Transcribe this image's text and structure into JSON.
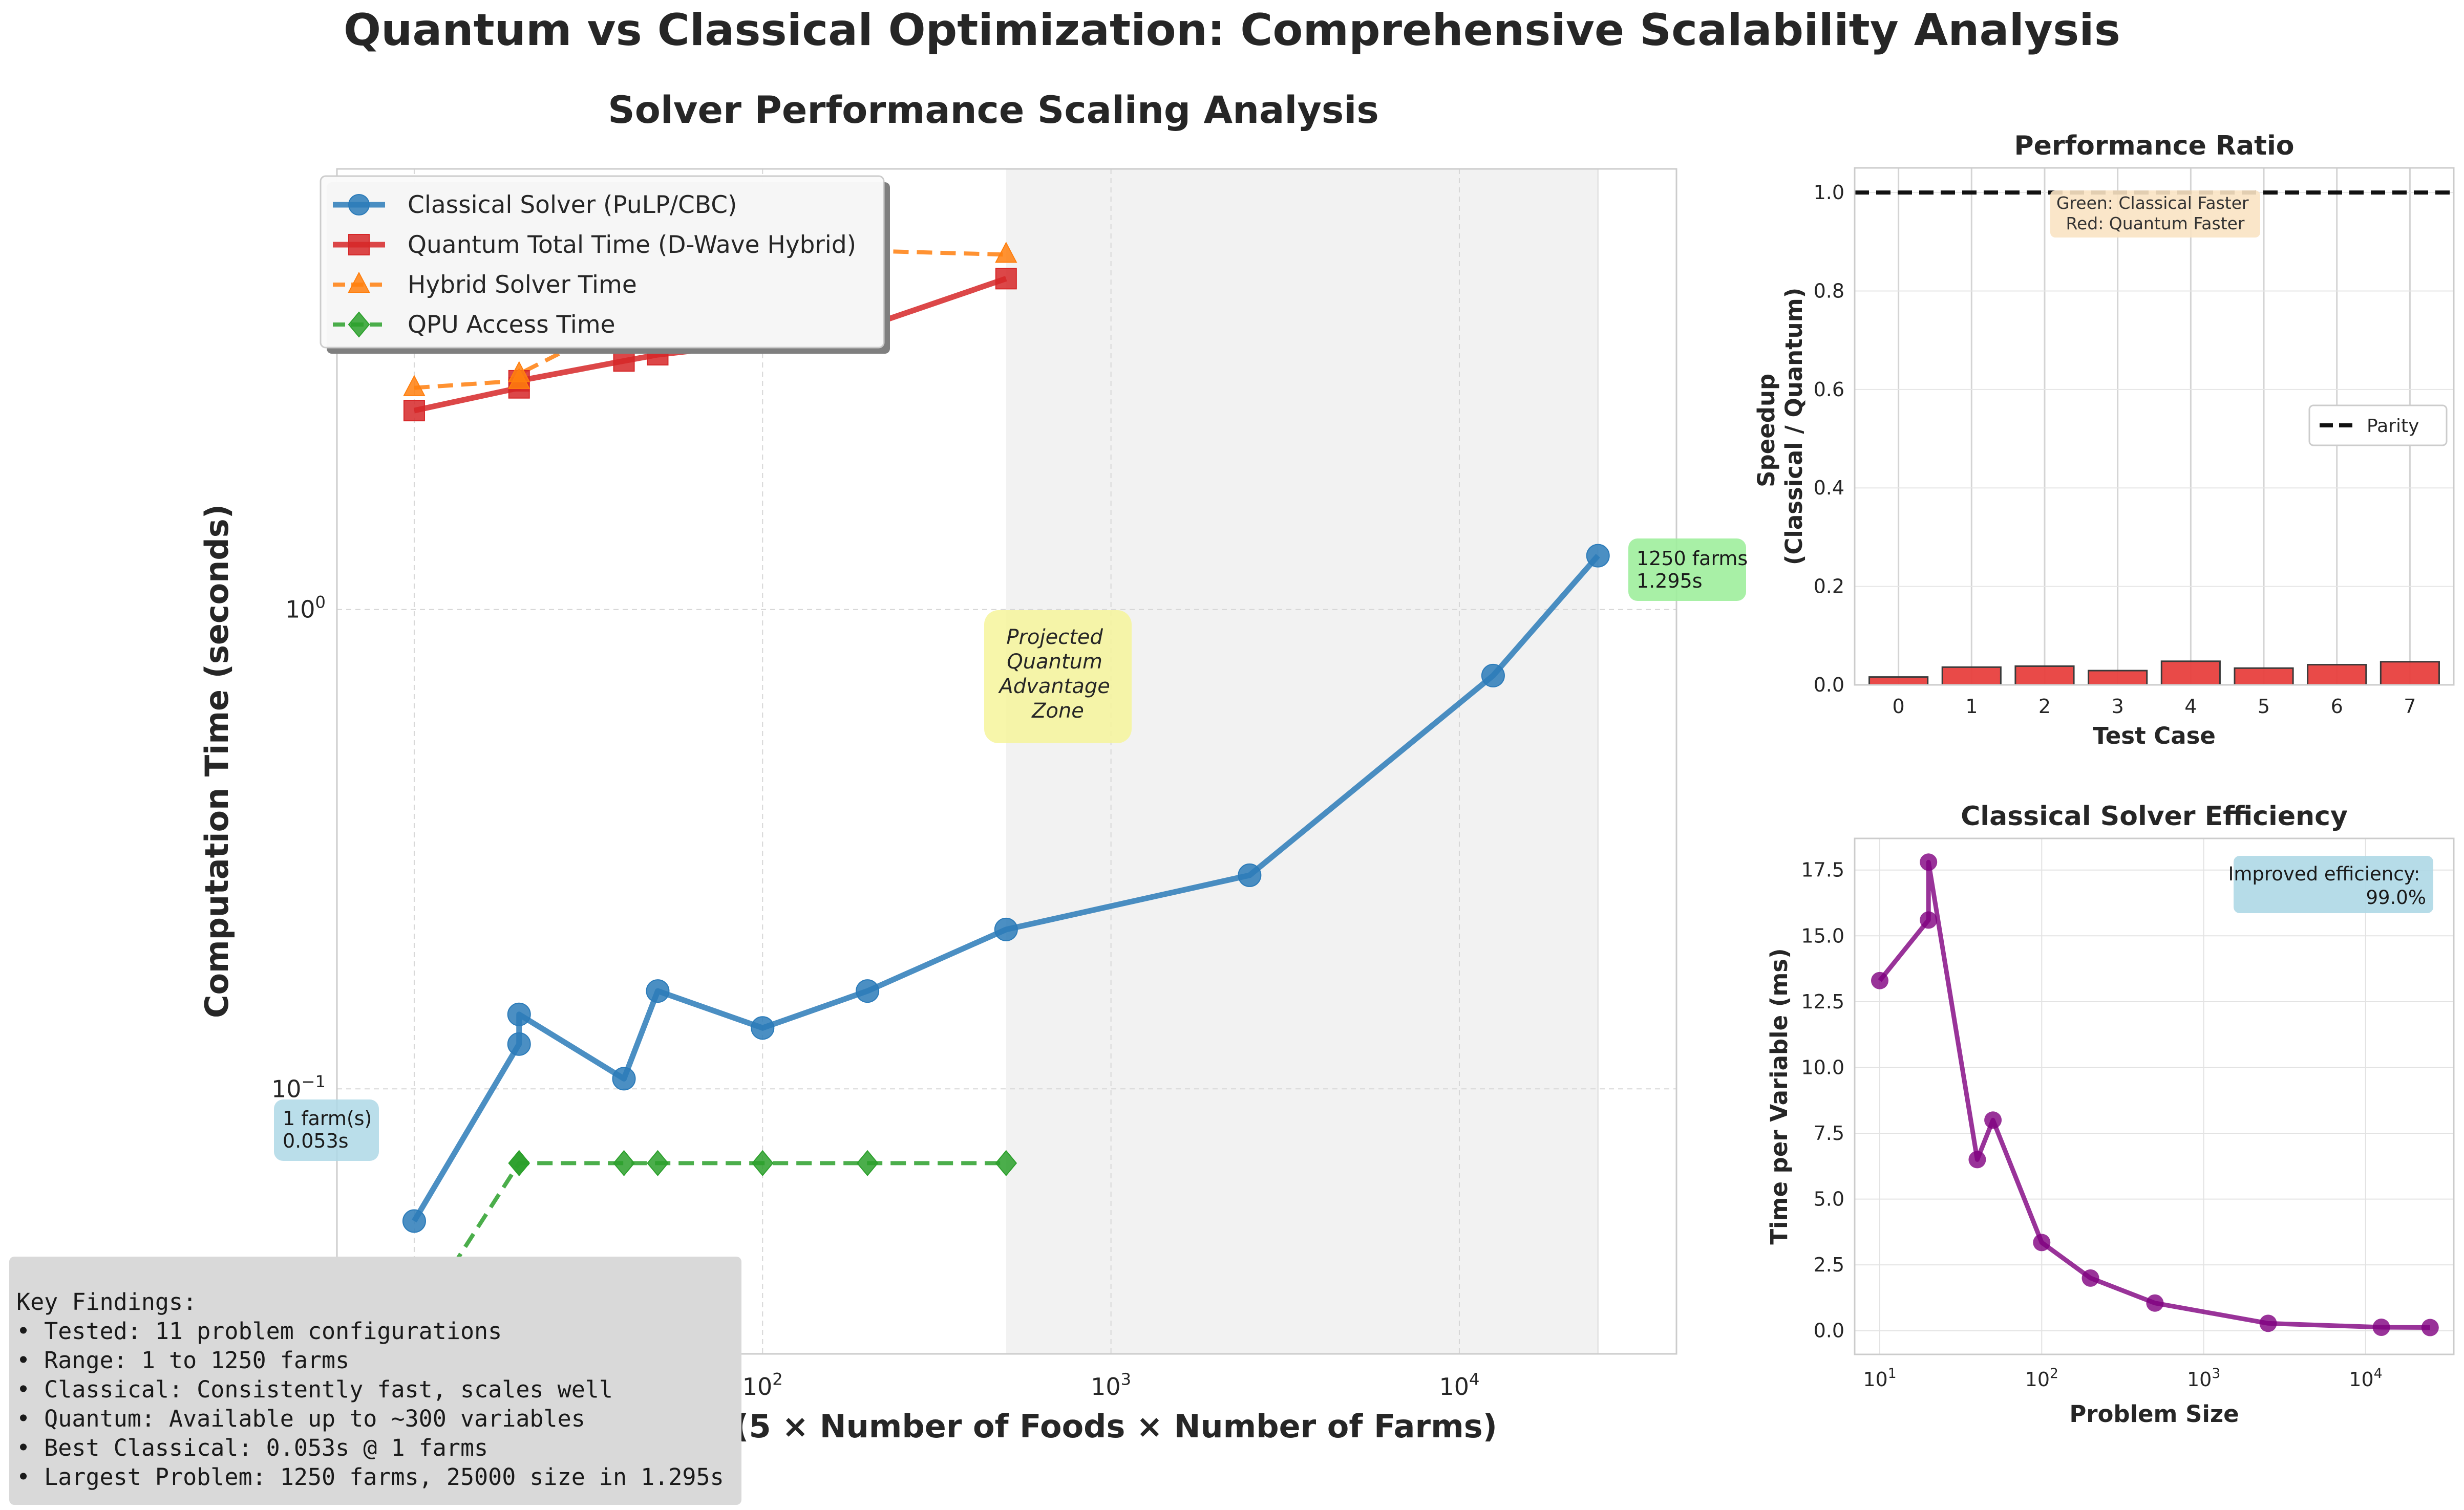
{
  "suptitle": "Quantum vs Classical Optimization: Comprehensive Scalability Analysis",
  "colors": {
    "classical": "#2b7bb9",
    "quantum": "#d62728",
    "hybrid": "#ff7f0e",
    "qpu": "#2ca02c",
    "efficiency": "#800080",
    "ratio_bar": "#e8403e",
    "zone": "#f2f2f2",
    "zone_label_bg": "#f6f59b",
    "first_label_bg": "#aed8e6",
    "last_label_bg": "#9fee9c",
    "efficiency_label_bg": "#aed8e6",
    "ratio_label_bg": "#f9e3c3"
  },
  "chart_data": [
    {
      "type": "line",
      "title": "Solver Performance Scaling Analysis",
      "xlabel": "Problem Size (5 × Number of Foods × Number of Farms)",
      "ylabel": "Computation Time (seconds)",
      "xscale": "log",
      "yscale": "log",
      "xlim": [
        6,
        42000
      ],
      "ylim": [
        0.028,
        8.3
      ],
      "x_ticks": [
        {
          "value": 100,
          "base": "10",
          "exp": "2"
        },
        {
          "value": 1000,
          "base": "10",
          "exp": "3"
        },
        {
          "value": 10000,
          "base": "10",
          "exp": "4"
        }
      ],
      "y_ticks": [
        {
          "value": 0.1,
          "base": "10",
          "exp": "−1"
        },
        {
          "value": 1,
          "base": "10",
          "exp": "0"
        }
      ],
      "grid": true,
      "legend_position": "upper left",
      "series": [
        {
          "name": "Classical Solver (PuLP/CBC)",
          "color_key": "classical",
          "style": "solid",
          "marker": "circle",
          "x": [
            10,
            20,
            20,
            40,
            50,
            100,
            200,
            500,
            2500,
            12500,
            25000
          ],
          "y": [
            0.053,
            0.124,
            0.143,
            0.105,
            0.16,
            0.134,
            0.16,
            0.215,
            0.279,
            0.728,
            1.295
          ]
        },
        {
          "name": "Quantum Total Time (D-Wave Hybrid)",
          "color_key": "quantum",
          "style": "solid",
          "marker": "square",
          "x": [
            10,
            20,
            20,
            40,
            50,
            100,
            200,
            500
          ],
          "y": [
            2.6,
            2.9,
            3.0,
            3.3,
            3.4,
            3.6,
            3.9,
            4.9
          ]
        },
        {
          "name": "Hybrid Solver Time",
          "color_key": "hybrid",
          "style": "dashed",
          "marker": "triangle",
          "x": [
            10,
            20,
            20,
            40,
            50,
            100,
            200,
            500
          ],
          "y": [
            2.9,
            3.0,
            3.1,
            4.0,
            3.9,
            4.1,
            5.6,
            5.5
          ]
        },
        {
          "name": "QPU Access Time",
          "color_key": "qpu",
          "style": "dashed",
          "marker": "diamond",
          "x": [
            10,
            20,
            20,
            40,
            50,
            100,
            200,
            500
          ],
          "y": [
            0.032,
            0.07,
            0.07,
            0.07,
            0.07,
            0.07,
            0.07,
            0.07
          ]
        }
      ],
      "shaded_region": {
        "x": [
          500,
          25000
        ]
      },
      "zone_label": [
        "Projected",
        "Quantum",
        "Advantage",
        "Zone"
      ],
      "annotations": [
        {
          "lines": [
            "1 farm(s)",
            "0.053s"
          ],
          "x": 10,
          "y": 0.053
        },
        {
          "lines": [
            "1250 farms",
            "1.295s"
          ],
          "x": 25000,
          "y": 1.295
        }
      ]
    },
    {
      "type": "bar",
      "title": "Performance Ratio",
      "xlabel": "Test Case",
      "ylabel": [
        "Speedup",
        "(Classical / Quantum)"
      ],
      "categories": [
        "0",
        "1",
        "2",
        "3",
        "4",
        "5",
        "6",
        "7"
      ],
      "values": [
        0.016,
        0.036,
        0.038,
        0.029,
        0.048,
        0.034,
        0.041,
        0.047
      ],
      "ylim": [
        0,
        1.05
      ],
      "y_ticks": [
        "0.0",
        "0.2",
        "0.4",
        "0.6",
        "0.8",
        "1.0"
      ],
      "reference_line": {
        "y": 1.0,
        "label": "Parity"
      },
      "legend_position": "center right",
      "note": [
        "Green: Classical Faster",
        "Red: Quantum Faster"
      ]
    },
    {
      "type": "line",
      "title": "Classical Solver Efficiency",
      "xlabel": "Problem Size",
      "ylabel": "Time per Variable (ms)",
      "xscale": "log",
      "xlim": [
        7,
        35000
      ],
      "ylim": [
        -0.9,
        18.7
      ],
      "x_ticks": [
        {
          "value": 10,
          "base": "10",
          "exp": "1"
        },
        {
          "value": 100,
          "base": "10",
          "exp": "2"
        },
        {
          "value": 1000,
          "base": "10",
          "exp": "3"
        },
        {
          "value": 10000,
          "base": "10",
          "exp": "4"
        }
      ],
      "y_ticks": [
        "0.0",
        "2.5",
        "5.0",
        "7.5",
        "10.0",
        "12.5",
        "15.0",
        "17.5"
      ],
      "x": [
        10,
        20,
        20,
        40,
        50,
        100,
        200,
        500,
        2500,
        12500,
        25000
      ],
      "y": [
        13.3,
        15.6,
        17.8,
        6.5,
        8.0,
        3.35,
        2.0,
        1.05,
        0.28,
        0.13,
        0.12
      ],
      "note": [
        "Improved efficiency:",
        "99.0%"
      ]
    }
  ],
  "key_findings": [
    "Key Findings:",
    "• Tested: 11 problem configurations",
    "• Range: 1 to 1250 farms",
    "• Classical: Consistently fast, scales well",
    "• Quantum: Available up to ~300 variables",
    "• Best Classical: 0.053s @ 1 farms",
    "• Largest Problem: 1250 farms, 25000 size in 1.295s"
  ]
}
